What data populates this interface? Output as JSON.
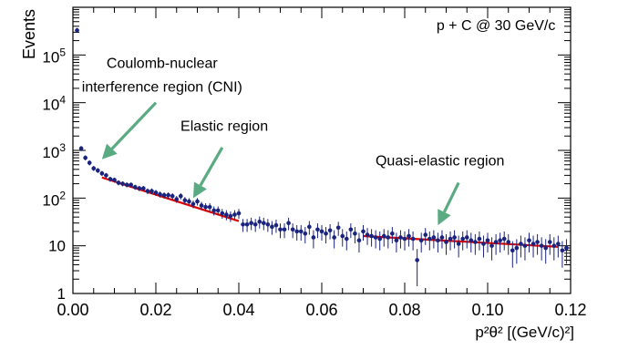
{
  "chart_data": {
    "type": "scatter",
    "title": "",
    "xlabel": "p²θ² [(GeV/c)²]",
    "ylabel": "Events",
    "xlim": [
      0.0,
      0.12
    ],
    "ylim": [
      1,
      1000000
    ],
    "yscale": "log",
    "grid": false,
    "legend": "none",
    "x_tick_labels": [
      "0.00",
      "0.02",
      "0.04",
      "0.06",
      "0.08",
      "0.10",
      "0.12"
    ],
    "x_tick_values": [
      0.0,
      0.02,
      0.04,
      0.06,
      0.08,
      0.1,
      0.12
    ],
    "y_tick_labels": [
      {
        "base": "1",
        "exp": "",
        "value": 1
      },
      {
        "base": "10",
        "exp": "",
        "value": 10
      },
      {
        "base": "10",
        "exp": "2",
        "value": 100
      },
      {
        "base": "10",
        "exp": "3",
        "value": 1000
      },
      {
        "base": "10",
        "exp": "4",
        "value": 10000
      },
      {
        "base": "10",
        "exp": "5",
        "value": 100000
      }
    ],
    "series": [
      {
        "color": "#1a237e",
        "x": [
          0.001,
          0.002,
          0.003,
          0.004,
          0.005,
          0.006,
          0.007,
          0.008,
          0.009,
          0.01,
          0.011,
          0.012,
          0.013,
          0.014,
          0.015,
          0.016,
          0.017,
          0.018,
          0.019,
          0.02,
          0.021,
          0.022,
          0.023,
          0.024,
          0.025,
          0.026,
          0.027,
          0.028,
          0.029,
          0.03,
          0.031,
          0.032,
          0.033,
          0.034,
          0.035,
          0.036,
          0.037,
          0.038,
          0.039,
          0.04,
          0.041,
          0.042,
          0.043,
          0.044,
          0.045,
          0.046,
          0.047,
          0.048,
          0.049,
          0.05,
          0.051,
          0.052,
          0.053,
          0.054,
          0.055,
          0.056,
          0.057,
          0.058,
          0.059,
          0.06,
          0.061,
          0.062,
          0.063,
          0.064,
          0.065,
          0.066,
          0.067,
          0.068,
          0.069,
          0.07,
          0.071,
          0.072,
          0.073,
          0.074,
          0.075,
          0.076,
          0.077,
          0.078,
          0.079,
          0.08,
          0.081,
          0.082,
          0.083,
          0.084,
          0.085,
          0.086,
          0.087,
          0.088,
          0.089,
          0.09,
          0.091,
          0.092,
          0.093,
          0.094,
          0.095,
          0.096,
          0.097,
          0.098,
          0.099,
          0.1,
          0.101,
          0.102,
          0.103,
          0.104,
          0.105,
          0.106,
          0.107,
          0.108,
          0.109,
          0.11,
          0.111,
          0.112,
          0.113,
          0.114,
          0.115,
          0.116,
          0.117,
          0.118,
          0.119
        ],
        "y": [
          330000,
          1100,
          700,
          550,
          420,
          380,
          330,
          300,
          250,
          240,
          210,
          200,
          190,
          190,
          170,
          160,
          160,
          140,
          140,
          130,
          120,
          115,
          115,
          110,
          95,
          110,
          90,
          85,
          75,
          85,
          70,
          65,
          65,
          55,
          55,
          48,
          45,
          42,
          45,
          48,
          28,
          28,
          30,
          28,
          32,
          30,
          28,
          25,
          27,
          22,
          22,
          30,
          22,
          20,
          20,
          18,
          25,
          15,
          22,
          20,
          18,
          21,
          15,
          24,
          16,
          14,
          22,
          18,
          13,
          20,
          17,
          16,
          15,
          14,
          16,
          15,
          18,
          13,
          15,
          14,
          16,
          14,
          5,
          13,
          17,
          14,
          15,
          13,
          15,
          12,
          14,
          15,
          11,
          14,
          15,
          13,
          12,
          14,
          11,
          13,
          10,
          12,
          13,
          14,
          12,
          8,
          9,
          11,
          10,
          13,
          11,
          12,
          10,
          9,
          12,
          10,
          11,
          8,
          9
        ]
      }
    ],
    "fits": [
      {
        "color": "#e00000",
        "x": [
          0.007,
          0.04
        ],
        "y": [
          270,
          33
        ]
      },
      {
        "color": "#e00000",
        "x": [
          0.07,
          0.117
        ],
        "y": [
          16,
          9.5
        ]
      }
    ],
    "annotations": [
      {
        "text": "p + C @ 30 GeV/c",
        "x": 0.102,
        "y": 330000
      },
      {
        "text": "Coulomb-nuclear",
        "x": 0.0215,
        "y": 54000
      },
      {
        "text": "interference region (CNI)",
        "x": 0.0215,
        "y": 17000
      },
      {
        "text": "Elastic region",
        "x": 0.0365,
        "y": 2600
      },
      {
        "text": "Quasi-elastic region",
        "x": 0.0885,
        "y": 480
      }
    ],
    "arrows": [
      {
        "color": "#5aaa82",
        "from": [
          0.02,
          10000
        ],
        "to": [
          0.007,
          650
        ]
      },
      {
        "color": "#5aaa82",
        "from": [
          0.036,
          1150
        ],
        "to": [
          0.029,
          100
        ]
      },
      {
        "color": "#5aaa82",
        "from": [
          0.093,
          210
        ],
        "to": [
          0.088,
          27
        ]
      }
    ]
  }
}
